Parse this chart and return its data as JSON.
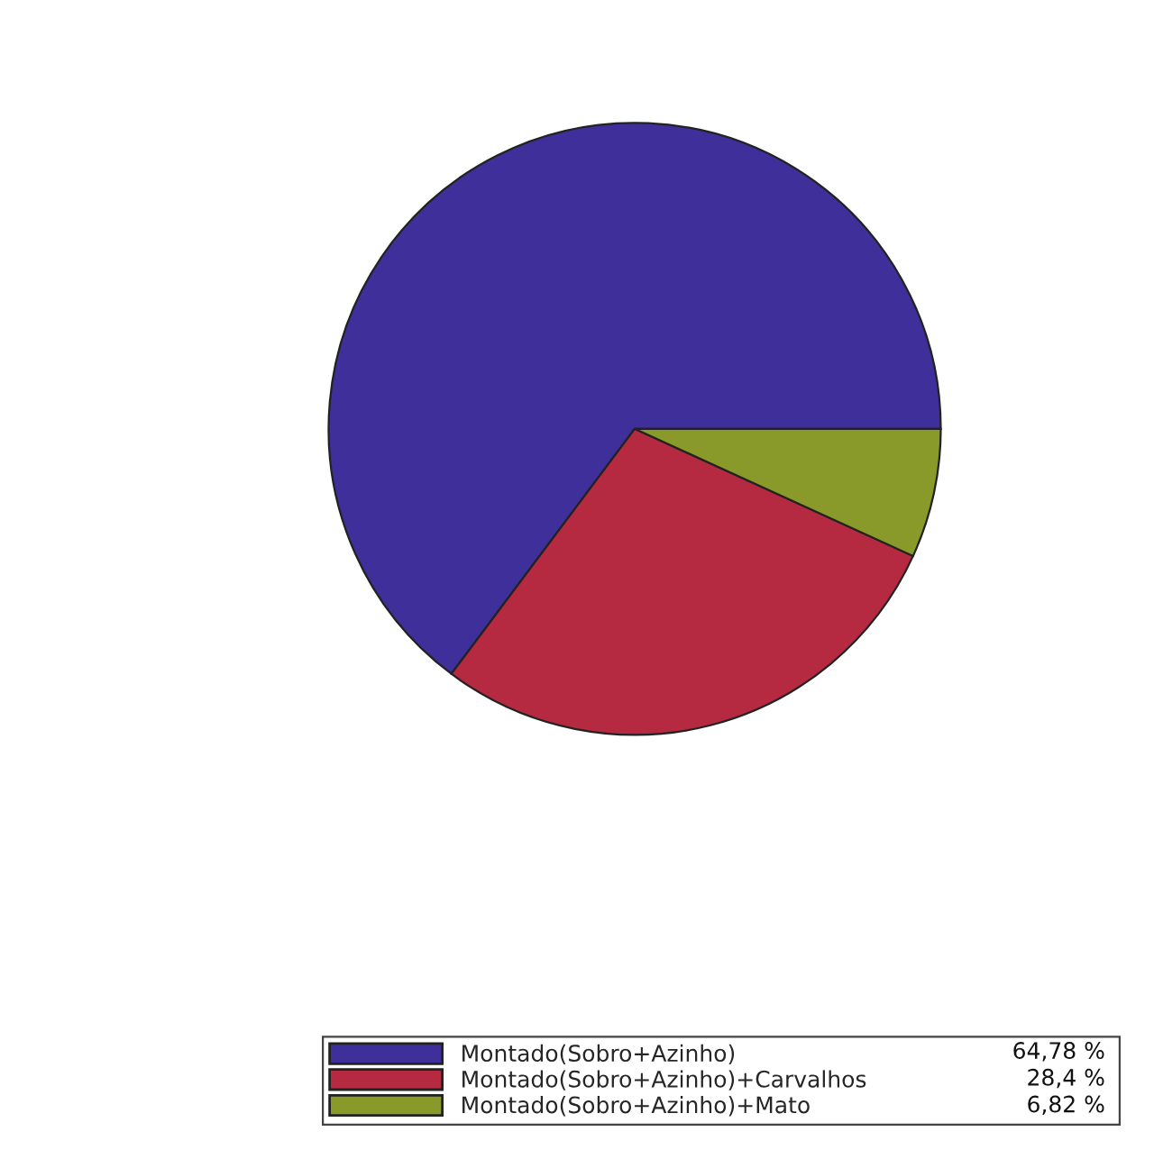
{
  "chart_data": {
    "type": "pie",
    "categories": [
      "Montado(Sobro+Azinho)",
      "Montado(Sobro+Azinho)+Carvalhos",
      "Montado(Sobro+Azinho)+Mato"
    ],
    "values": [
      64.78,
      28.4,
      6.82
    ],
    "value_labels": [
      "64,78 %",
      "28,4 %",
      "6,82 %"
    ],
    "colors": [
      "#3f2f9a",
      "#b52a40",
      "#8a9a2a"
    ],
    "legend": "bottom"
  }
}
